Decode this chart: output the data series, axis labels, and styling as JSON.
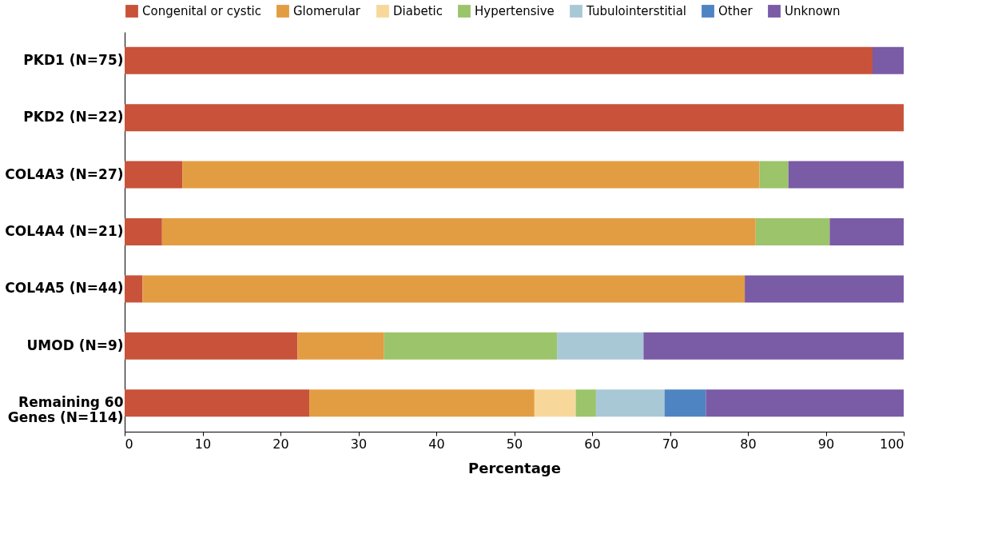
{
  "chart_data": {
    "type": "bar",
    "orientation": "horizontal",
    "stacked": true,
    "categories": [
      "PKD1 (N=75)",
      "PKD2 (N=22)",
      "COL4A3 (N=27)",
      "COL4A4 (N=21)",
      "COL4A5 (N=44)",
      "UMOD (N=9)",
      "Remaining 60 Genes (N=114)"
    ],
    "series": [
      {
        "name": "Congenital or cystic",
        "color": "#c8533a",
        "values": [
          96.0,
          100.0,
          7.4,
          4.8,
          2.3,
          22.2,
          23.7
        ]
      },
      {
        "name": "Glomerular",
        "color": "#e29d42",
        "values": [
          null,
          null,
          74.1,
          76.2,
          77.3,
          11.1,
          28.9
        ]
      },
      {
        "name": "Diabetic",
        "color": "#f8d89a",
        "values": [
          null,
          null,
          null,
          null,
          null,
          null,
          5.3
        ]
      },
      {
        "name": "Hypertensive",
        "color": "#9cc46a",
        "values": [
          null,
          null,
          3.7,
          9.5,
          null,
          22.2,
          2.6
        ]
      },
      {
        "name": "Tubulointerstitial",
        "color": "#a9c8d6",
        "values": [
          null,
          null,
          null,
          null,
          null,
          11.1,
          8.8
        ]
      },
      {
        "name": "Other",
        "color": "#4f84c2",
        "values": [
          null,
          null,
          null,
          null,
          null,
          null,
          5.3
        ]
      },
      {
        "name": "Unknown",
        "color": "#7a5ba6",
        "values": [
          4.0,
          null,
          14.8,
          9.5,
          20.4,
          33.4,
          25.4
        ]
      }
    ],
    "xlim": [
      0,
      100
    ],
    "xticks": [
      0,
      10,
      20,
      30,
      40,
      50,
      60,
      70,
      80,
      90,
      100
    ],
    "xlabel": "Percentage",
    "grid": false,
    "legend": "top"
  }
}
